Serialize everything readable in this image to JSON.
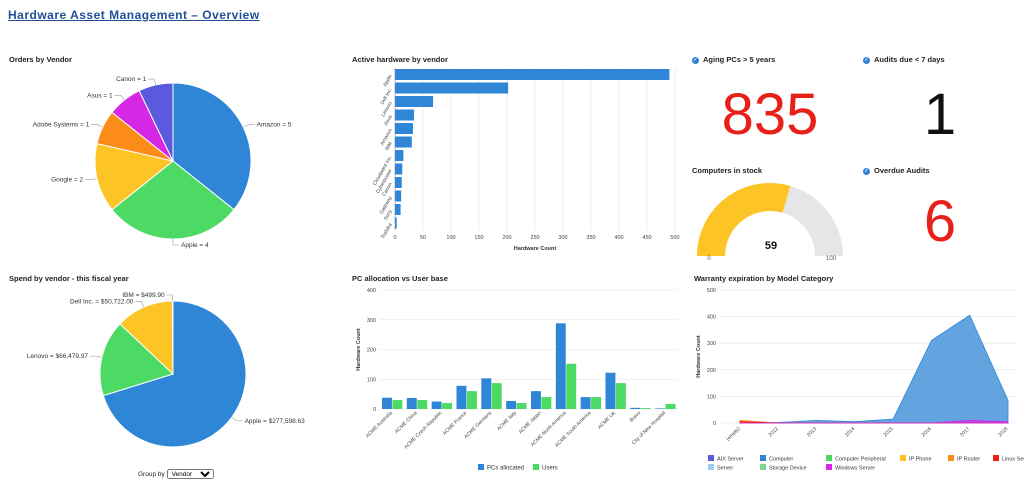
{
  "page": {
    "title": "Hardware Asset Management – Overview"
  },
  "widgets": {
    "orders": {
      "title": "Orders by Vendor"
    },
    "active": {
      "title": "Active hardware by vendor"
    },
    "aging": {
      "title": "Aging PCs > 5 years",
      "value": "835"
    },
    "audits7": {
      "title": "Audits due < 7 days",
      "value": "1"
    },
    "stock": {
      "title": "Computers in stock",
      "value": "59",
      "min": "0",
      "max": "100"
    },
    "overdue": {
      "title": "Overdue Audits",
      "value": "6"
    },
    "spend": {
      "title": "Spend by vendor - this fiscal year"
    },
    "pcalloc": {
      "title": "PC allocation vs User base"
    },
    "warranty": {
      "title": "Warranty expiration by Model Category"
    }
  },
  "controls": {
    "group_by_label": "Group by",
    "group_by_value": "Vendor"
  },
  "colors": {
    "red": "#e8201a",
    "blue": "#2f86d6",
    "green": "#4cd964",
    "gold": "#fdc426",
    "gray": "#e6e6e6"
  },
  "chart_data": [
    {
      "id": "orders",
      "type": "pie",
      "slices": [
        {
          "label": "Amazon = 5",
          "value": 5,
          "color": "#2f86d6"
        },
        {
          "label": "Apple = 4",
          "value": 4,
          "color": "#4cd964"
        },
        {
          "label": "Google = 2",
          "value": 2,
          "color": "#fdc426"
        },
        {
          "label": "Adobe Systems = 1",
          "value": 1,
          "color": "#fb8c1a"
        },
        {
          "label": "Asus = 1",
          "value": 1,
          "color": "#d727e6"
        },
        {
          "label": "Canon = 1",
          "value": 1,
          "color": "#5a5adf"
        }
      ]
    },
    {
      "id": "active",
      "type": "bar",
      "categories": [
        "Apple",
        "Dell Inc.",
        "Lenovo",
        "Asus",
        "Amazon",
        "IBM",
        "Cloudward Inc.",
        "Cyberpower",
        "Canon",
        "Gateway",
        "Sony",
        "Toshiba"
      ],
      "values": [
        490,
        202,
        68,
        34,
        32,
        30,
        15,
        13,
        12,
        11,
        10,
        3
      ],
      "xlabel": "Hardware Count",
      "xlim": [
        0,
        500
      ],
      "xticks": [
        "0",
        "50",
        "100",
        "150",
        "200",
        "250",
        "300",
        "350",
        "400",
        "450",
        "500"
      ]
    },
    {
      "id": "spend",
      "type": "pie",
      "slices": [
        {
          "label": "Apple = $277,598.63",
          "value": 277598.63,
          "color": "#2f86d6"
        },
        {
          "label": "Lenovo = $66,479.97",
          "value": 66479.97,
          "color": "#4cd964"
        },
        {
          "label": "Dell Inc. = $50,722.00",
          "value": 50722.0,
          "color": "#fdc426"
        },
        {
          "label": "IBM = $499.90",
          "value": 499.9,
          "color": "#fb8c1a"
        }
      ]
    },
    {
      "id": "pcalloc",
      "type": "bar",
      "categories": [
        "ACME Australia",
        "ACME China",
        "ACME Czech Republic",
        "ACME France",
        "ACME Germany",
        "ACME Italy",
        "ACME Japan",
        "ACME North America",
        "ACME South America",
        "ACME UK",
        "Bravo",
        "City of New Hospital"
      ],
      "series": [
        {
          "name": "PCs allocated",
          "color": "#2f86d6",
          "values": [
            38,
            37,
            25,
            78,
            103,
            27,
            60,
            288,
            40,
            122,
            4,
            2
          ]
        },
        {
          "name": "Users",
          "color": "#4cd964",
          "values": [
            30,
            30,
            20,
            60,
            87,
            20,
            40,
            152,
            40,
            87,
            3,
            17
          ]
        }
      ],
      "ylabel": "Hardware Count",
      "ylim": [
        0,
        400
      ],
      "yticks": [
        "0",
        "100",
        "200",
        "300",
        "400"
      ]
    },
    {
      "id": "warranty",
      "type": "area",
      "x": [
        "(empty)",
        "2012",
        "2013",
        "2014",
        "2015",
        "2016",
        "2017",
        "2018"
      ],
      "series": [
        {
          "name": "AIX Server",
          "color": "#5a5adf",
          "values": [
            0,
            0,
            0,
            0,
            0,
            0,
            0,
            0
          ]
        },
        {
          "name": "Computer",
          "color": "#2f86d6",
          "values": [
            3,
            2,
            10,
            5,
            15,
            310,
            405,
            85
          ]
        },
        {
          "name": "Computer Peripheral",
          "color": "#4cd964",
          "values": [
            0,
            0,
            0,
            0,
            0,
            0,
            0,
            0
          ]
        },
        {
          "name": "IP Phone",
          "color": "#fdc426",
          "values": [
            0,
            0,
            0,
            0,
            0,
            0,
            0,
            0
          ]
        },
        {
          "name": "IP Router",
          "color": "#fb8c1a",
          "values": [
            10,
            0,
            0,
            0,
            0,
            0,
            0,
            0
          ]
        },
        {
          "name": "Linux Server",
          "color": "#e8201a",
          "values": [
            5,
            0,
            0,
            0,
            0,
            0,
            0,
            0
          ]
        },
        {
          "name": "Server",
          "color": "#9ec9f0",
          "values": [
            0,
            0,
            0,
            0,
            0,
            0,
            0,
            0
          ]
        },
        {
          "name": "Storage Device",
          "color": "#7bd68f",
          "values": [
            0,
            0,
            0,
            0,
            0,
            0,
            0,
            0
          ]
        },
        {
          "name": "Windows Server",
          "color": "#d727e6",
          "values": [
            0,
            0,
            0,
            0,
            0,
            0,
            10,
            5
          ]
        }
      ],
      "ylabel": "Hardware Count",
      "ylim": [
        0,
        500
      ],
      "yticks": [
        "0",
        "100",
        "200",
        "300",
        "400",
        "500"
      ]
    }
  ]
}
